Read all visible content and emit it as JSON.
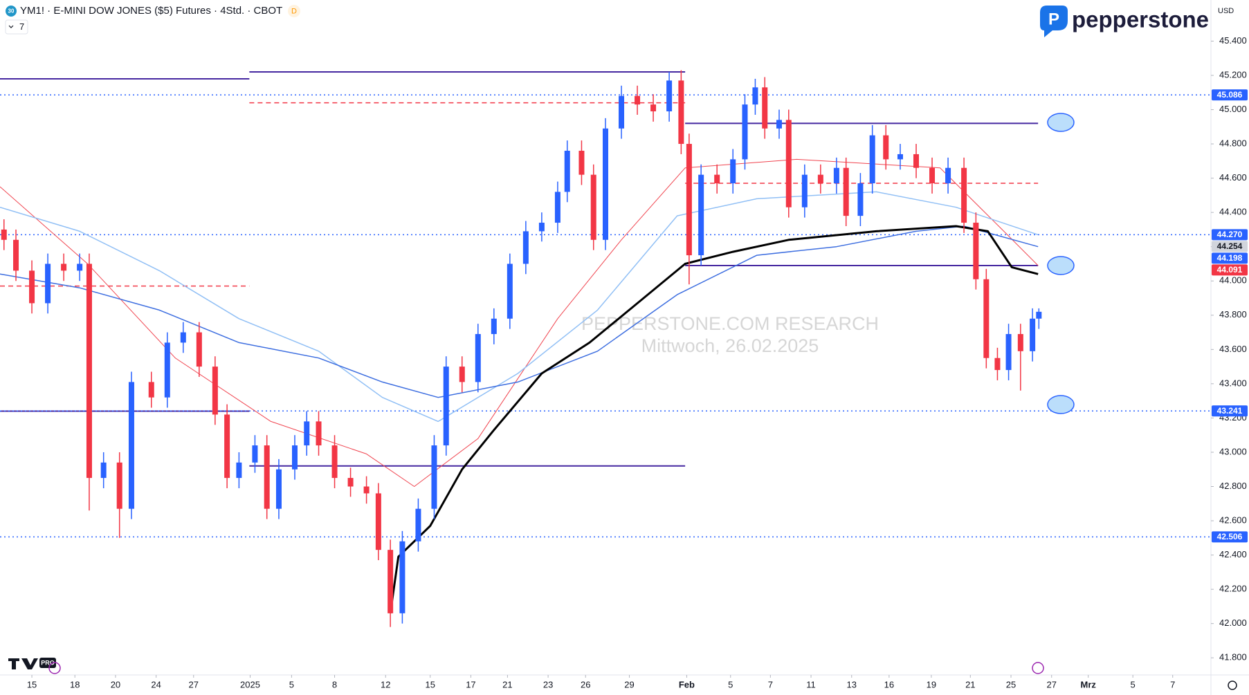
{
  "chart_data": {
    "type": "candlestick",
    "title": "YM1! · E-MINI DOW JONES ($5) Futures · 4Std. · CBOT",
    "symbol_icon": "30",
    "badge": "D",
    "interval_count": "7",
    "currency": "USD",
    "brand": "pepperstone",
    "platform_badge": "PRO",
    "watermark": [
      "PEPPERSTONE.COM RESEARCH",
      "Mittwoch, 26.02.2025"
    ],
    "up_color": "#2962ff",
    "down_color": "#f23645",
    "xlim": [
      0,
      1520
    ],
    "ylim": [
      41700,
      45640
    ],
    "grid": false,
    "xticks": [
      {
        "value": 40,
        "label": "15"
      },
      {
        "value": 94,
        "label": "18"
      },
      {
        "value": 145,
        "label": "20"
      },
      {
        "value": 196,
        "label": "24"
      },
      {
        "value": 243,
        "label": "27"
      },
      {
        "value": 314,
        "label": "2025"
      },
      {
        "value": 366,
        "label": "5"
      },
      {
        "value": 420,
        "label": "8"
      },
      {
        "value": 484,
        "label": "12"
      },
      {
        "value": 540,
        "label": "15"
      },
      {
        "value": 591,
        "label": "17"
      },
      {
        "value": 637,
        "label": "21"
      },
      {
        "value": 688,
        "label": "23"
      },
      {
        "value": 735,
        "label": "26"
      },
      {
        "value": 790,
        "label": "29"
      },
      {
        "value": 862,
        "label": "Feb"
      },
      {
        "value": 917,
        "label": "5"
      },
      {
        "value": 967,
        "label": "7"
      },
      {
        "value": 1018,
        "label": "11"
      },
      {
        "value": 1069,
        "label": "13"
      },
      {
        "value": 1116,
        "label": "16"
      },
      {
        "value": 1169,
        "label": "19"
      },
      {
        "value": 1218,
        "label": "21"
      },
      {
        "value": 1269,
        "label": "25"
      },
      {
        "value": 1320,
        "label": "27"
      },
      {
        "value": 1366,
        "label": "Mrz"
      },
      {
        "value": 1422,
        "label": "5"
      },
      {
        "value": 1472,
        "label": "7"
      }
    ],
    "yticks": [
      {
        "value": 41800,
        "label": "41.800"
      },
      {
        "value": 42000,
        "label": "42.000"
      },
      {
        "value": 42200,
        "label": "42.200"
      },
      {
        "value": 42400,
        "label": "42.400"
      },
      {
        "value": 42600,
        "label": "42.600"
      },
      {
        "value": 42800,
        "label": "42.800"
      },
      {
        "value": 43000,
        "label": "43.000"
      },
      {
        "value": 43200,
        "label": "43.200"
      },
      {
        "value": 43400,
        "label": "43.400"
      },
      {
        "value": 43600,
        "label": "43.600"
      },
      {
        "value": 43800,
        "label": "43.800"
      },
      {
        "value": 44000,
        "label": "44.000"
      },
      {
        "value": 44200,
        "label": "44.200"
      },
      {
        "value": 44400,
        "label": "44.400"
      },
      {
        "value": 44600,
        "label": "44.600"
      },
      {
        "value": 44800,
        "label": "44.800"
      },
      {
        "value": 45000,
        "label": "45.000"
      },
      {
        "value": 45200,
        "label": "45.200"
      },
      {
        "value": 45400,
        "label": "45.400"
      }
    ],
    "x": [
      5,
      20,
      40,
      60,
      80,
      100,
      112,
      130,
      150,
      165,
      190,
      210,
      230,
      250,
      270,
      285,
      300,
      320,
      335,
      350,
      370,
      385,
      400,
      420,
      440,
      460,
      475,
      490,
      505,
      525,
      545,
      560,
      580,
      600,
      620,
      640,
      660,
      680,
      700,
      712,
      730,
      745,
      760,
      780,
      800,
      820,
      840,
      855,
      865,
      880,
      900,
      920,
      935,
      948,
      960,
      978,
      990,
      1010,
      1030,
      1050,
      1062,
      1080,
      1095,
      1112,
      1130,
      1150,
      1170,
      1190,
      1210,
      1225,
      1238,
      1252,
      1266,
      1281,
      1296,
      1304
    ],
    "open": [
      44300,
      44240,
      44060,
      43870,
      44100,
      44060,
      44100,
      42850,
      42940,
      42670,
      43410,
      43320,
      43640,
      43700,
      43500,
      43220,
      42850,
      42940,
      43040,
      42670,
      42900,
      43040,
      43180,
      43040,
      42850,
      42800,
      42760,
      42430,
      42060,
      42480,
      42670,
      43040,
      43500,
      43410,
      43690,
      43780,
      44100,
      44290,
      44340,
      44520,
      44760,
      44620,
      44240,
      44890,
      45080,
      45030,
      44990,
      45170,
      44800,
      44150,
      44620,
      44570,
      44710,
      45030,
      45130,
      44890,
      44940,
      44430,
      44620,
      44570,
      44660,
      44380,
      44570,
      44850,
      44710,
      44740,
      44660,
      44570,
      44660,
      44340,
      44010,
      43550,
      43480,
      43690,
      43590,
      43780
    ],
    "high": [
      44360,
      44300,
      44120,
      44160,
      44160,
      44160,
      44160,
      43000,
      43000,
      43470,
      43470,
      43700,
      43760,
      43760,
      43560,
      43280,
      43000,
      43100,
      43100,
      42960,
      43100,
      43240,
      43240,
      43100,
      42910,
      42860,
      42820,
      42490,
      42540,
      42730,
      43100,
      43560,
      43560,
      43750,
      43840,
      44160,
      44350,
      44400,
      44580,
      44820,
      44820,
      44680,
      44950,
      45140,
      45140,
      45090,
      45220,
      45230,
      44860,
      44680,
      44680,
      44770,
      45090,
      45180,
      45190,
      45000,
      45000,
      44680,
      44680,
      44720,
      44720,
      44630,
      44910,
      44910,
      44800,
      44800,
      44720,
      44720,
      44720,
      44400,
      44070,
      43610,
      43750,
      43750,
      43840,
      43840
    ],
    "low": [
      44180,
      44000,
      43810,
      43810,
      44000,
      44000,
      42660,
      42790,
      42500,
      42610,
      43260,
      43260,
      43580,
      43440,
      43160,
      42790,
      42790,
      42880,
      42610,
      42610,
      42840,
      42980,
      42980,
      42790,
      42740,
      42700,
      42370,
      41980,
      42000,
      42420,
      42610,
      42980,
      43350,
      43350,
      43630,
      43720,
      44040,
      44230,
      44280,
      44460,
      44560,
      44180,
      44180,
      44830,
      44970,
      44930,
      44930,
      44740,
      43980,
      44090,
      44510,
      44510,
      44650,
      44970,
      44830,
      44830,
      44370,
      44370,
      44510,
      44510,
      44320,
      44320,
      44510,
      44650,
      44650,
      44600,
      44510,
      44510,
      44280,
      43950,
      43490,
      43420,
      43420,
      43360,
      43530,
      43720
    ],
    "close": [
      44240,
      44060,
      43870,
      44100,
      44060,
      44100,
      42850,
      42940,
      42670,
      43410,
      43320,
      43640,
      43700,
      43500,
      43220,
      42850,
      42940,
      43040,
      42670,
      42900,
      43040,
      43180,
      43040,
      42850,
      42800,
      42760,
      42430,
      42060,
      42480,
      42670,
      43040,
      43500,
      43410,
      43690,
      43780,
      44100,
      44290,
      44340,
      44520,
      44760,
      44620,
      44240,
      44890,
      45080,
      45030,
      44990,
      45170,
      44800,
      44150,
      44620,
      44570,
      44710,
      45030,
      45130,
      44890,
      44940,
      44430,
      44620,
      44570,
      44660,
      44380,
      44570,
      44850,
      44710,
      44740,
      44660,
      44570,
      44660,
      44340,
      44010,
      43550,
      43480,
      43690,
      43590,
      43780,
      43820
    ],
    "lines": [
      {
        "color": "#f0444f",
        "width": 1,
        "x": [
          0,
          110,
          220,
          340,
          460,
          520,
          600,
          700,
          780,
          860,
          1000,
          1180,
          1260,
          1303
        ],
        "values": [
          44550,
          44100,
          43550,
          43180,
          42990,
          42800,
          43080,
          43780,
          44240,
          44660,
          44710,
          44660,
          44290,
          44090
        ]
      },
      {
        "color": "#90bff5",
        "width": 1.5,
        "x": [
          0,
          100,
          200,
          300,
          400,
          480,
          550,
          650,
          750,
          850,
          950,
          1100,
          1200,
          1303
        ],
        "values": [
          44430,
          44290,
          44060,
          43780,
          43590,
          43320,
          43180,
          43460,
          43830,
          44380,
          44480,
          44520,
          44430,
          44270
        ]
      },
      {
        "color": "#3d6ee0",
        "width": 1.5,
        "x": [
          0,
          100,
          200,
          300,
          400,
          480,
          550,
          650,
          750,
          850,
          950,
          1050,
          1150,
          1210,
          1303
        ],
        "values": [
          44040,
          43960,
          43830,
          43640,
          43550,
          43410,
          43320,
          43410,
          43590,
          43920,
          44150,
          44200,
          44290,
          44320,
          44200
        ]
      },
      {
        "color": "#000000",
        "width": 3,
        "x": [
          490,
          500,
          540,
          580,
          620,
          680,
          740,
          800,
          860,
          920,
          990,
          1100,
          1200,
          1240,
          1270,
          1303
        ],
        "values": [
          42060,
          42390,
          42570,
          42900,
          43130,
          43460,
          43640,
          43870,
          44100,
          44170,
          44240,
          44290,
          44320,
          44290,
          44080,
          44040
        ]
      }
    ],
    "levels": [
      {
        "value": 45180,
        "x": [
          0,
          313
        ],
        "color": "#4527a0",
        "style": "solid"
      },
      {
        "value": 45220,
        "x": [
          313,
          860
        ],
        "color": "#4527a0",
        "style": "solid"
      },
      {
        "value": 44920,
        "x": [
          860,
          1303
        ],
        "color": "#4527a0",
        "style": "solid"
      },
      {
        "value": 43240,
        "x": [
          0,
          313
        ],
        "color": "#4527a0",
        "style": "solid"
      },
      {
        "value": 42920,
        "x": [
          313,
          860
        ],
        "color": "#4527a0",
        "style": "solid"
      },
      {
        "value": 44090,
        "x": [
          860,
          1303
        ],
        "color": "#4527a0",
        "style": "solid"
      },
      {
        "value": 45086,
        "x": [
          0,
          1520
        ],
        "color": "#2962ff",
        "style": "dotted"
      },
      {
        "value": 44270,
        "x": [
          0,
          1520
        ],
        "color": "#2962ff",
        "style": "dotted"
      },
      {
        "value": 43241,
        "x": [
          0,
          1520
        ],
        "color": "#2962ff",
        "style": "dotted"
      },
      {
        "value": 42506,
        "x": [
          0,
          1520
        ],
        "color": "#2962ff",
        "style": "dotted"
      },
      {
        "value": 45040,
        "x": [
          313,
          860
        ],
        "color": "#f23645",
        "style": "dashed"
      },
      {
        "value": 43970,
        "x": [
          0,
          313
        ],
        "color": "#f23645",
        "style": "dashed"
      },
      {
        "value": 44570,
        "x": [
          860,
          1303
        ],
        "color": "#f23645",
        "style": "dashed"
      }
    ],
    "price_tags": [
      {
        "value": 45086,
        "label": "45.086",
        "color": "#2962ff",
        "text_color": "#ffffff"
      },
      {
        "value": 44270,
        "label": "44.270",
        "color": "#2962ff",
        "text_color": "#ffffff"
      },
      {
        "value": 44254,
        "label": "44.254",
        "color": "#d1d4dc",
        "text_color": "#131722"
      },
      {
        "value": 44198,
        "label": "44.198",
        "color": "#2962ff",
        "text_color": "#ffffff"
      },
      {
        "value": 44091,
        "label": "44.091",
        "color": "#f23645",
        "text_color": "#ffffff"
      },
      {
        "value": 43241,
        "label": "43.241",
        "color": "#2962ff",
        "text_color": "#ffffff"
      },
      {
        "value": 42506,
        "label": "42.506",
        "color": "#2962ff",
        "text_color": "#ffffff"
      }
    ]
  }
}
